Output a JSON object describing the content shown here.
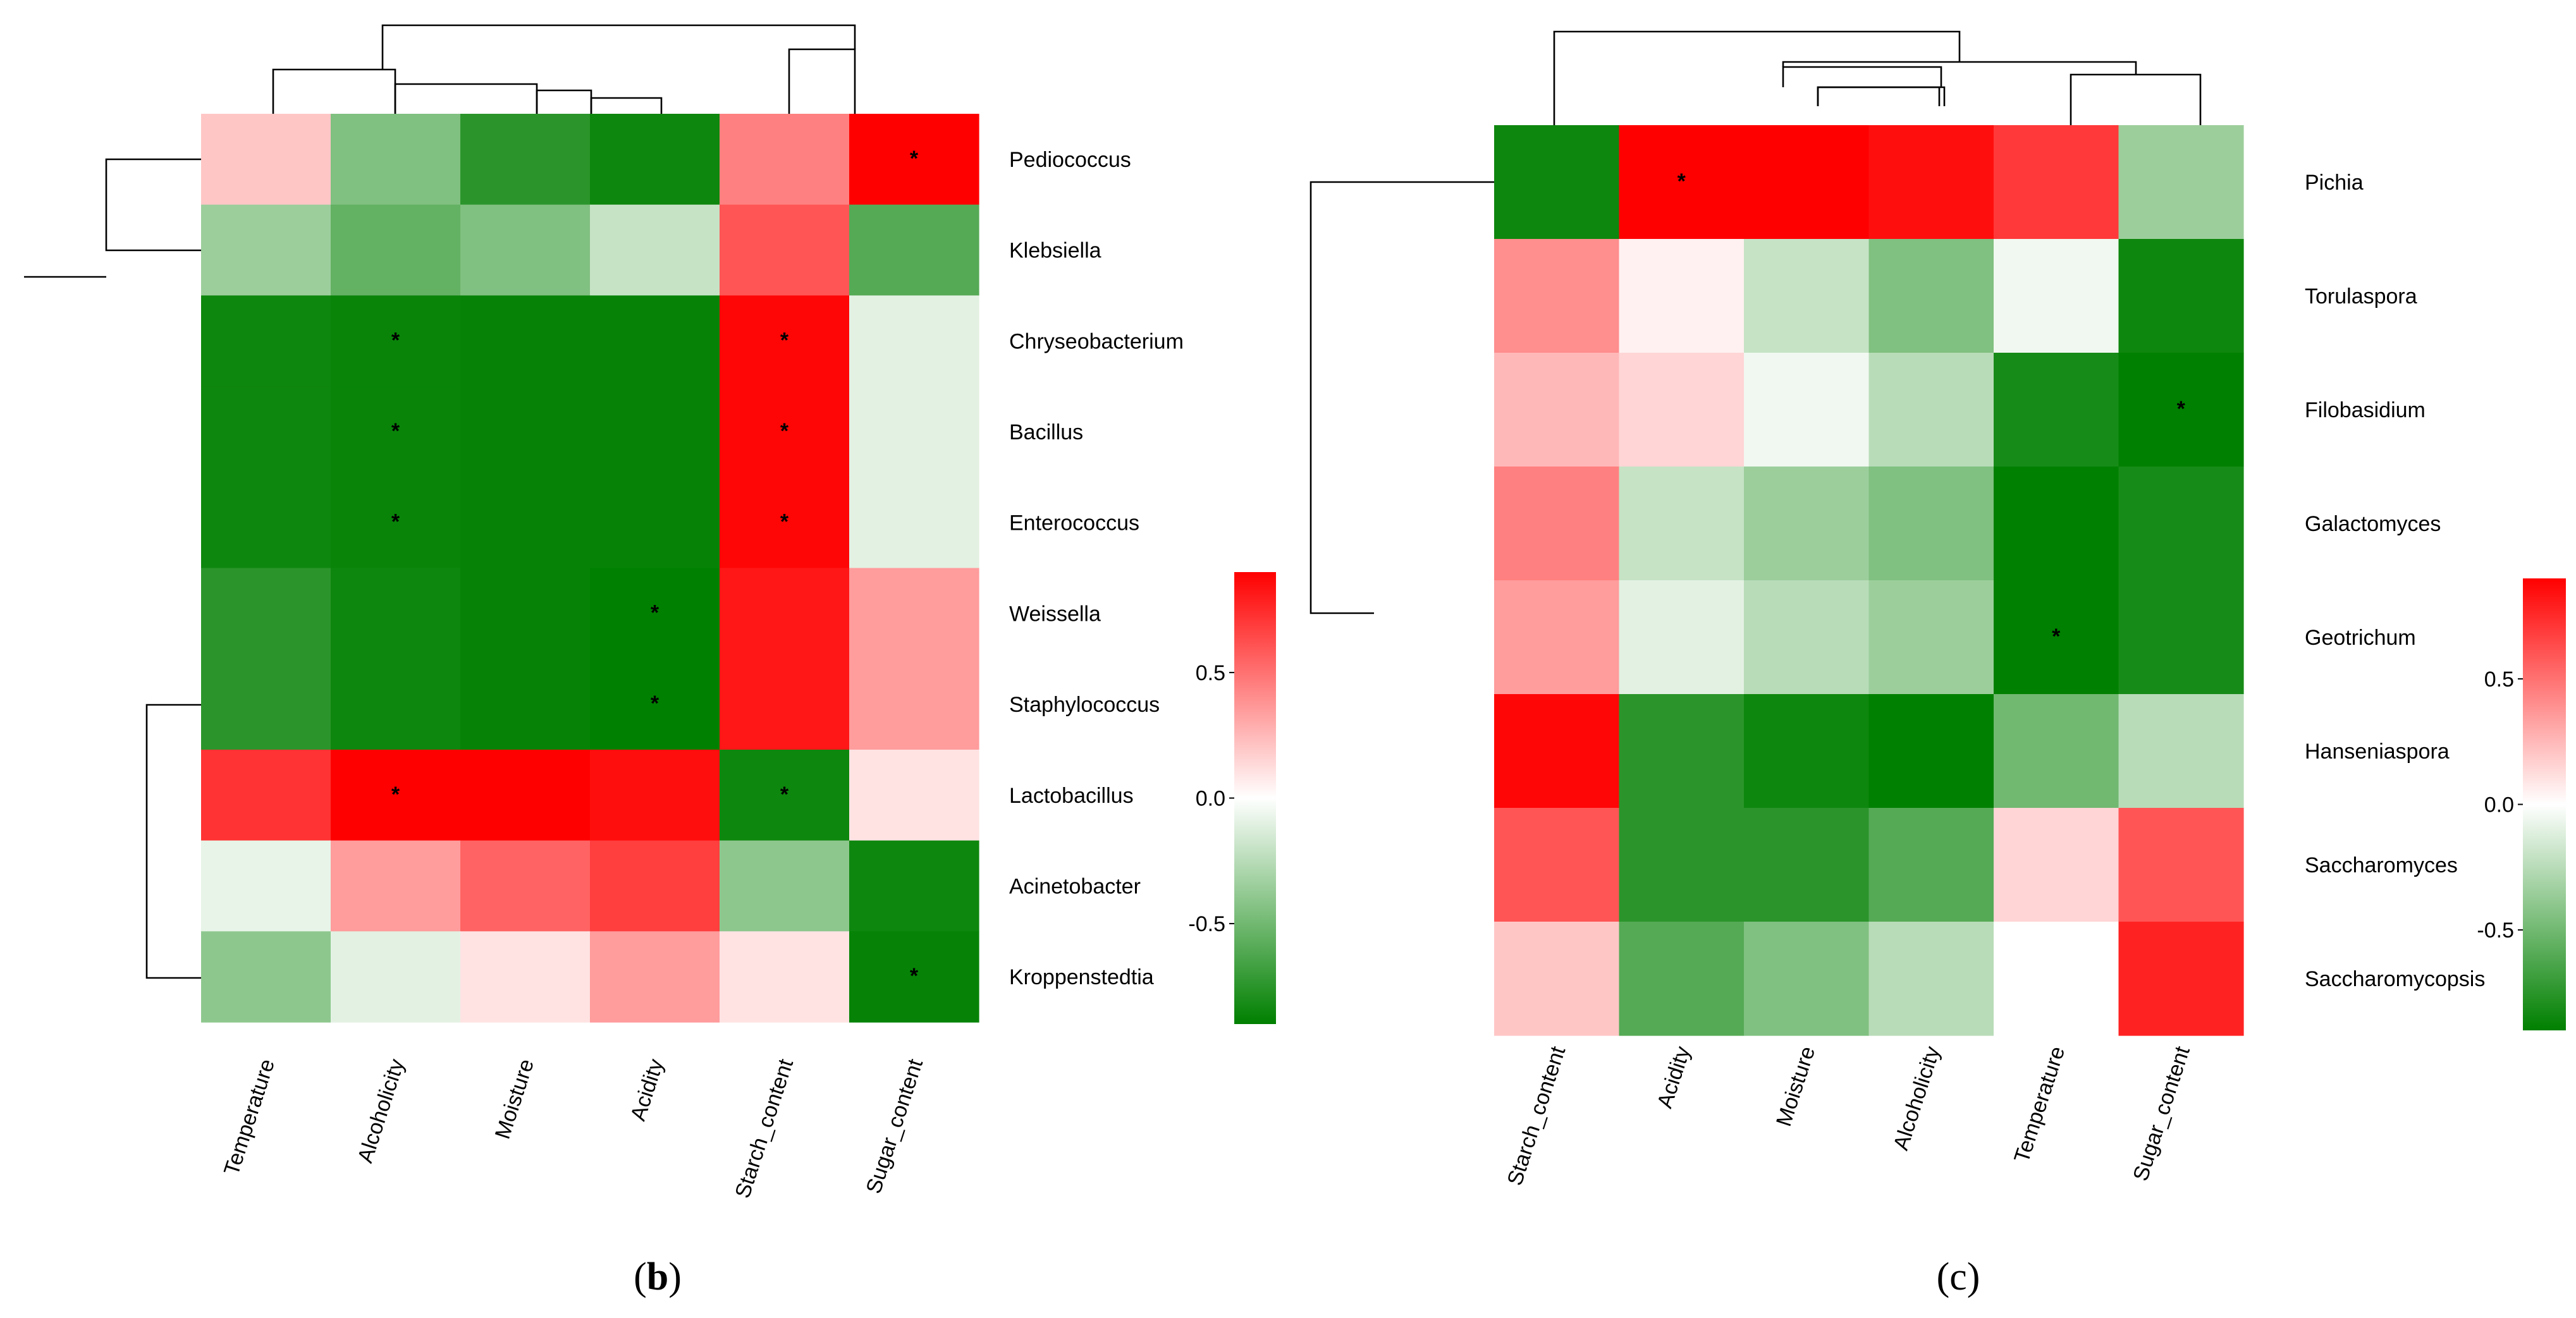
{
  "chart_data": [
    {
      "type": "heatmap",
      "panel_label": "b",
      "rows": [
        "Pediococcus",
        "Klebsiella",
        "Chryseobacterium",
        "Bacillus",
        "Enterococcus",
        "Weissella",
        "Staphylococcus",
        "Lactobacillus",
        "Acinetobacter",
        "Kroppenstedtia"
      ],
      "columns": [
        "Temperature",
        "Alcoholicity",
        "Moisture",
        "Acidity",
        "Starch_content",
        "Sugar_content"
      ],
      "values": [
        [
          0.2,
          -0.45,
          -0.75,
          -0.85,
          0.45,
          0.9
        ],
        [
          -0.35,
          -0.55,
          -0.45,
          -0.2,
          0.6,
          -0.6
        ],
        [
          -0.85,
          -0.87,
          -0.88,
          -0.88,
          0.88,
          -0.1
        ],
        [
          -0.85,
          -0.87,
          -0.88,
          -0.88,
          0.88,
          -0.1
        ],
        [
          -0.85,
          -0.87,
          -0.88,
          -0.88,
          0.88,
          -0.1
        ],
        [
          -0.75,
          -0.85,
          -0.88,
          -0.9,
          0.82,
          0.35
        ],
        [
          -0.75,
          -0.85,
          -0.88,
          -0.9,
          0.82,
          0.35
        ],
        [
          0.72,
          0.9,
          0.9,
          0.85,
          -0.85,
          0.1
        ],
        [
          -0.08,
          0.35,
          0.55,
          0.68,
          -0.4,
          -0.85
        ],
        [
          -0.4,
          -0.1,
          0.1,
          0.35,
          0.1,
          -0.88
        ]
      ],
      "significance": [
        [
          false,
          false,
          false,
          false,
          false,
          true
        ],
        [
          false,
          false,
          false,
          false,
          false,
          false
        ],
        [
          false,
          true,
          false,
          false,
          true,
          false
        ],
        [
          false,
          true,
          false,
          false,
          true,
          false
        ],
        [
          false,
          true,
          false,
          false,
          true,
          false
        ],
        [
          false,
          false,
          false,
          true,
          false,
          false
        ],
        [
          false,
          false,
          false,
          true,
          false,
          false
        ],
        [
          false,
          true,
          false,
          false,
          true,
          false
        ],
        [
          false,
          false,
          false,
          false,
          false,
          false
        ],
        [
          false,
          false,
          false,
          false,
          false,
          true
        ]
      ],
      "sig_marker": "*",
      "colorscale": {
        "low": "#008000",
        "mid": "#ffffff",
        "high": "#ff0000",
        "min": -0.9,
        "max": 0.9
      },
      "colorbar_ticks": [
        {
          "value": 0.5,
          "label": "0.5"
        },
        {
          "value": 0.0,
          "label": "0.0"
        },
        {
          "value": -0.5,
          "label": "-0.5"
        }
      ]
    },
    {
      "type": "heatmap",
      "panel_label": "c",
      "rows": [
        "Pichia",
        "Torulaspora",
        "Filobasidium",
        "Galactomyces",
        "Geotrichum",
        "Hanseniaspora",
        "Saccharomyces",
        "Saccharomycopsis"
      ],
      "columns": [
        "Starch_content",
        "Acidity",
        "Moisture",
        "Alcoholicity",
        "Temperature",
        "Sugar_content"
      ],
      "values": [
        [
          -0.85,
          0.9,
          0.9,
          0.85,
          0.7,
          -0.35
        ],
        [
          0.4,
          0.05,
          -0.2,
          -0.45,
          -0.05,
          -0.85
        ],
        [
          0.25,
          0.15,
          -0.05,
          -0.25,
          -0.82,
          -0.9
        ],
        [
          0.45,
          -0.2,
          -0.35,
          -0.45,
          -0.9,
          -0.82
        ],
        [
          0.35,
          -0.1,
          -0.25,
          -0.35,
          -0.9,
          -0.82
        ],
        [
          0.88,
          -0.75,
          -0.85,
          -0.9,
          -0.5,
          -0.25
        ],
        [
          0.6,
          -0.75,
          -0.75,
          -0.6,
          0.15,
          0.6
        ],
        [
          0.2,
          -0.6,
          -0.45,
          -0.25,
          0.0,
          0.78
        ]
      ],
      "significance": [
        [
          false,
          true,
          false,
          false,
          false,
          false
        ],
        [
          false,
          false,
          false,
          false,
          false,
          false
        ],
        [
          false,
          false,
          false,
          false,
          false,
          true
        ],
        [
          false,
          false,
          false,
          false,
          false,
          false
        ],
        [
          false,
          false,
          false,
          false,
          true,
          false
        ],
        [
          false,
          false,
          false,
          false,
          false,
          false
        ],
        [
          false,
          false,
          false,
          false,
          false,
          false
        ],
        [
          false,
          false,
          false,
          false,
          false,
          false
        ]
      ],
      "sig_marker": "*",
      "colorscale": {
        "low": "#008000",
        "mid": "#ffffff",
        "high": "#ff0000",
        "min": -0.9,
        "max": 0.9
      },
      "colorbar_ticks": [
        {
          "value": 0.5,
          "label": "0.5"
        },
        {
          "value": 0.0,
          "label": "0.0"
        },
        {
          "value": -0.5,
          "label": "-0.5"
        }
      ]
    }
  ]
}
